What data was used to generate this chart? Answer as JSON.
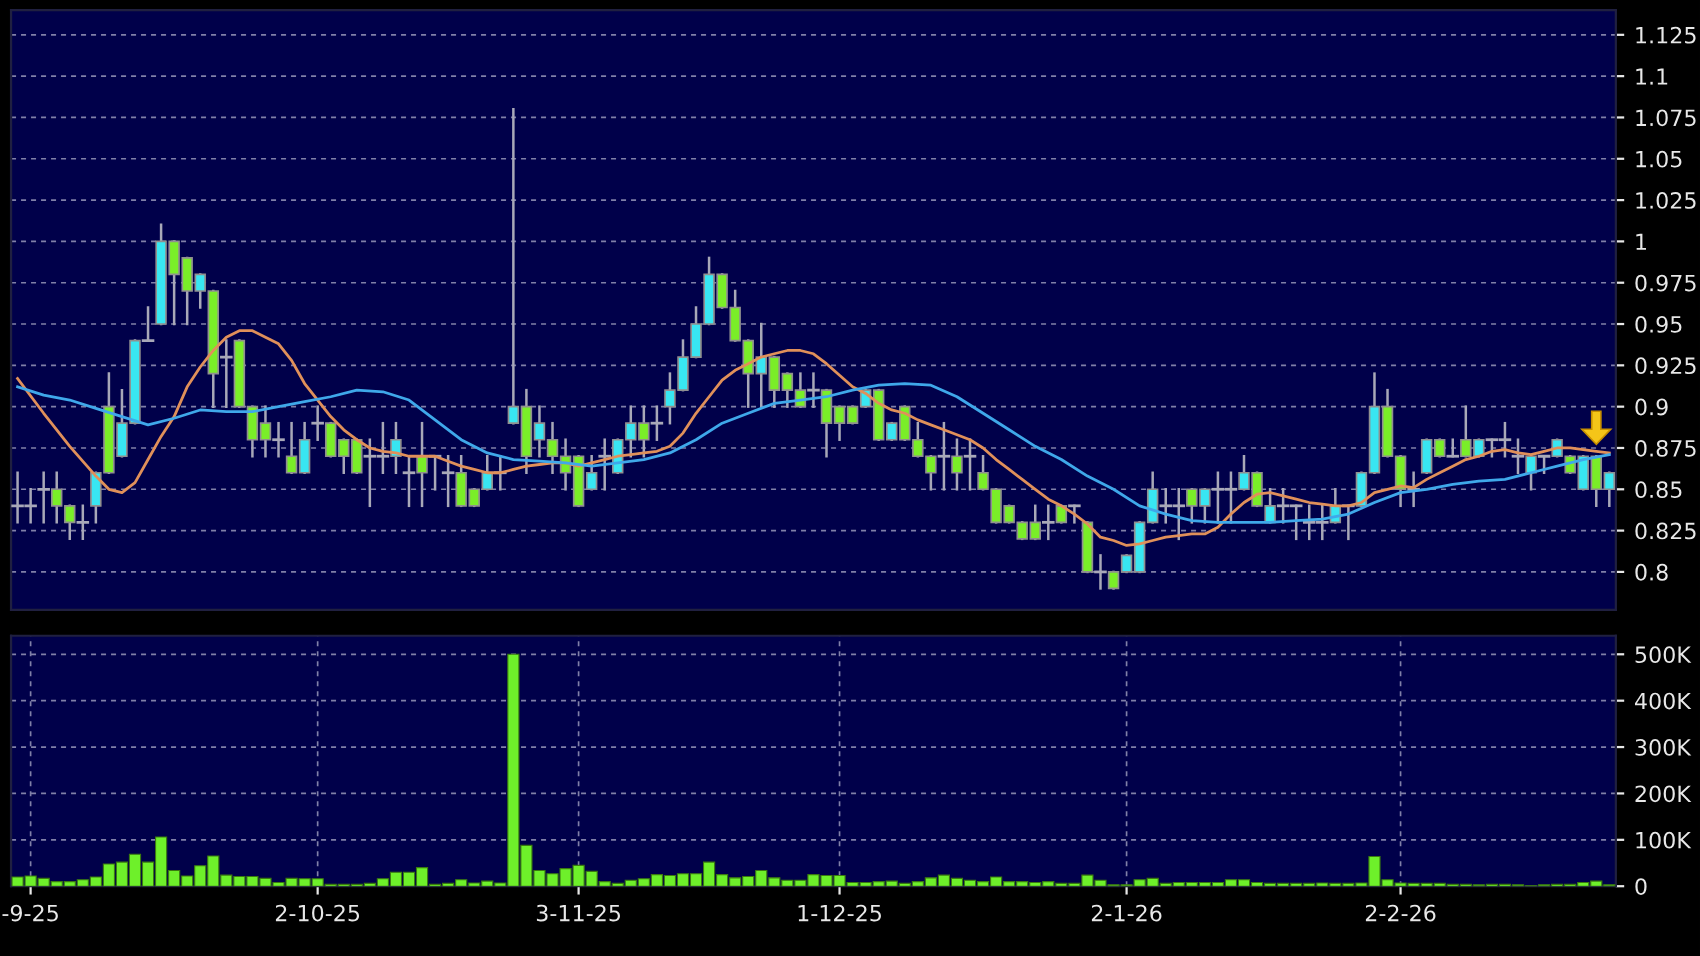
{
  "chart_data": [
    {
      "type": "candlestick",
      "categories": [
        null,
        null,
        null,
        null,
        null,
        null,
        null,
        null,
        null,
        null,
        null,
        null,
        null,
        null,
        null,
        null,
        null,
        null,
        null,
        null,
        null,
        null,
        null,
        null,
        null,
        null,
        null,
        null,
        null,
        null,
        null,
        null,
        null,
        null,
        null,
        null,
        null,
        null,
        null,
        null,
        null,
        null,
        null,
        null,
        null,
        null,
        null,
        null,
        null,
        null,
        null,
        null,
        null,
        null,
        null,
        null,
        null,
        null,
        null,
        null,
        null,
        null,
        null,
        null,
        null,
        null,
        null,
        null,
        null,
        null,
        null,
        null,
        null,
        null,
        null,
        null,
        null,
        null,
        null,
        null,
        null,
        null,
        null,
        null,
        null,
        null,
        null,
        null,
        null,
        null,
        null,
        null,
        null,
        null,
        null,
        null,
        null,
        null,
        null,
        null,
        null,
        null,
        null,
        null,
        null,
        null,
        null,
        null,
        null,
        null,
        null,
        null,
        null,
        null,
        null,
        null,
        null,
        null,
        null,
        null,
        null,
        null,
        null
      ],
      "ohlc": [
        [
          0.84,
          0.86,
          0.83,
          0.84
        ],
        [
          0.84,
          0.85,
          0.83,
          0.84
        ],
        [
          0.85,
          0.86,
          0.83,
          0.85
        ],
        [
          0.85,
          0.86,
          0.83,
          0.84
        ],
        [
          0.84,
          0.84,
          0.82,
          0.83
        ],
        [
          0.83,
          0.84,
          0.82,
          0.83
        ],
        [
          0.84,
          0.86,
          0.83,
          0.86
        ],
        [
          0.9,
          0.92,
          0.86,
          0.86
        ],
        [
          0.87,
          0.91,
          0.87,
          0.89
        ],
        [
          0.89,
          0.94,
          0.89,
          0.94
        ],
        [
          0.94,
          0.96,
          0.94,
          0.94
        ],
        [
          0.95,
          1.01,
          0.95,
          1.0
        ],
        [
          1.0,
          1.0,
          0.95,
          0.98
        ],
        [
          0.99,
          0.99,
          0.95,
          0.97
        ],
        [
          0.97,
          0.98,
          0.96,
          0.98
        ],
        [
          0.97,
          0.97,
          0.9,
          0.92
        ],
        [
          0.93,
          0.94,
          0.9,
          0.93
        ],
        [
          0.94,
          0.94,
          0.9,
          0.9
        ],
        [
          0.9,
          0.9,
          0.87,
          0.88
        ],
        [
          0.89,
          0.9,
          0.87,
          0.88
        ],
        [
          0.88,
          0.89,
          0.87,
          0.88
        ],
        [
          0.87,
          0.89,
          0.86,
          0.86
        ],
        [
          0.86,
          0.89,
          0.86,
          0.88
        ],
        [
          0.89,
          0.9,
          0.88,
          0.89
        ],
        [
          0.89,
          0.89,
          0.87,
          0.87
        ],
        [
          0.88,
          0.88,
          0.86,
          0.87
        ],
        [
          0.88,
          0.88,
          0.86,
          0.86
        ],
        [
          0.87,
          0.88,
          0.84,
          0.87
        ],
        [
          0.87,
          0.89,
          0.86,
          0.87
        ],
        [
          0.87,
          0.89,
          0.86,
          0.88
        ],
        [
          0.86,
          0.87,
          0.84,
          0.86
        ],
        [
          0.87,
          0.89,
          0.84,
          0.86
        ],
        [
          0.87,
          0.87,
          0.85,
          0.87
        ],
        [
          0.86,
          0.87,
          0.84,
          0.86
        ],
        [
          0.86,
          0.87,
          0.84,
          0.84
        ],
        [
          0.85,
          0.85,
          0.84,
          0.84
        ],
        [
          0.85,
          0.87,
          0.85,
          0.86
        ],
        [
          0.86,
          0.87,
          0.85,
          0.86
        ],
        [
          0.89,
          1.08,
          0.89,
          0.9
        ],
        [
          0.9,
          0.91,
          0.86,
          0.87
        ],
        [
          0.88,
          0.9,
          0.87,
          0.89
        ],
        [
          0.88,
          0.89,
          0.86,
          0.87
        ],
        [
          0.87,
          0.88,
          0.85,
          0.86
        ],
        [
          0.87,
          0.87,
          0.84,
          0.84
        ],
        [
          0.85,
          0.87,
          0.85,
          0.86
        ],
        [
          0.87,
          0.88,
          0.85,
          0.87
        ],
        [
          0.86,
          0.88,
          0.86,
          0.88
        ],
        [
          0.88,
          0.9,
          0.87,
          0.89
        ],
        [
          0.89,
          0.9,
          0.87,
          0.88
        ],
        [
          0.89,
          0.9,
          0.88,
          0.89
        ],
        [
          0.9,
          0.92,
          0.89,
          0.91
        ],
        [
          0.91,
          0.94,
          0.91,
          0.93
        ],
        [
          0.93,
          0.96,
          0.93,
          0.95
        ],
        [
          0.95,
          0.99,
          0.95,
          0.98
        ],
        [
          0.98,
          0.98,
          0.96,
          0.96
        ],
        [
          0.96,
          0.97,
          0.94,
          0.94
        ],
        [
          0.94,
          0.94,
          0.9,
          0.92
        ],
        [
          0.92,
          0.95,
          0.9,
          0.93
        ],
        [
          0.93,
          0.93,
          0.9,
          0.91
        ],
        [
          0.92,
          0.92,
          0.9,
          0.91
        ],
        [
          0.91,
          0.92,
          0.9,
          0.9
        ],
        [
          0.91,
          0.92,
          0.9,
          0.91
        ],
        [
          0.91,
          0.91,
          0.87,
          0.89
        ],
        [
          0.9,
          0.9,
          0.88,
          0.89
        ],
        [
          0.9,
          0.9,
          0.89,
          0.89
        ],
        [
          0.9,
          0.91,
          0.9,
          0.91
        ],
        [
          0.91,
          0.91,
          0.88,
          0.88
        ],
        [
          0.88,
          0.89,
          0.88,
          0.89
        ],
        [
          0.9,
          0.9,
          0.88,
          0.88
        ],
        [
          0.88,
          0.89,
          0.87,
          0.87
        ],
        [
          0.87,
          0.87,
          0.85,
          0.86
        ],
        [
          0.87,
          0.89,
          0.85,
          0.87
        ],
        [
          0.87,
          0.88,
          0.85,
          0.86
        ],
        [
          0.87,
          0.88,
          0.85,
          0.87
        ],
        [
          0.86,
          0.87,
          0.85,
          0.85
        ],
        [
          0.85,
          0.85,
          0.83,
          0.83
        ],
        [
          0.84,
          0.84,
          0.83,
          0.83
        ],
        [
          0.83,
          0.83,
          0.82,
          0.82
        ],
        [
          0.83,
          0.84,
          0.82,
          0.82
        ],
        [
          0.83,
          0.84,
          0.82,
          0.83
        ],
        [
          0.84,
          0.84,
          0.83,
          0.83
        ],
        [
          0.84,
          0.84,
          0.83,
          0.84
        ],
        [
          0.83,
          0.83,
          0.8,
          0.8
        ],
        [
          0.8,
          0.81,
          0.79,
          0.8
        ],
        [
          0.8,
          0.8,
          0.79,
          0.79
        ],
        [
          0.8,
          0.81,
          0.8,
          0.81
        ],
        [
          0.8,
          0.83,
          0.8,
          0.83
        ],
        [
          0.83,
          0.86,
          0.83,
          0.85
        ],
        [
          0.84,
          0.85,
          0.83,
          0.84
        ],
        [
          0.84,
          0.85,
          0.82,
          0.84
        ],
        [
          0.85,
          0.85,
          0.83,
          0.84
        ],
        [
          0.84,
          0.85,
          0.83,
          0.85
        ],
        [
          0.85,
          0.86,
          0.83,
          0.85
        ],
        [
          0.85,
          0.86,
          0.83,
          0.85
        ],
        [
          0.85,
          0.87,
          0.85,
          0.86
        ],
        [
          0.86,
          0.86,
          0.84,
          0.84
        ],
        [
          0.83,
          0.85,
          0.83,
          0.84
        ],
        [
          0.84,
          0.85,
          0.83,
          0.84
        ],
        [
          0.84,
          0.84,
          0.82,
          0.84
        ],
        [
          0.83,
          0.84,
          0.82,
          0.83
        ],
        [
          0.83,
          0.84,
          0.82,
          0.83
        ],
        [
          0.83,
          0.85,
          0.83,
          0.84
        ],
        [
          0.84,
          0.84,
          0.82,
          0.84
        ],
        [
          0.84,
          0.86,
          0.84,
          0.86
        ],
        [
          0.86,
          0.92,
          0.86,
          0.9
        ],
        [
          0.9,
          0.91,
          0.87,
          0.87
        ],
        [
          0.87,
          0.87,
          0.84,
          0.85
        ],
        [
          0.85,
          0.86,
          0.84,
          0.85
        ],
        [
          0.86,
          0.88,
          0.86,
          0.88
        ],
        [
          0.88,
          0.88,
          0.87,
          0.87
        ],
        [
          0.87,
          0.88,
          0.87,
          0.87
        ],
        [
          0.88,
          0.9,
          0.87,
          0.87
        ],
        [
          0.87,
          0.88,
          0.87,
          0.88
        ],
        [
          0.88,
          0.88,
          0.87,
          0.88
        ],
        [
          0.88,
          0.89,
          0.87,
          0.88
        ],
        [
          0.87,
          0.88,
          0.86,
          0.87
        ],
        [
          0.86,
          0.87,
          0.85,
          0.87
        ],
        [
          0.87,
          0.87,
          0.86,
          0.87
        ],
        [
          0.87,
          0.88,
          0.87,
          0.88
        ],
        [
          0.87,
          0.87,
          0.86,
          0.86
        ],
        [
          0.85,
          0.87,
          0.85,
          0.87
        ],
        [
          0.87,
          0.87,
          0.84,
          0.85
        ],
        [
          0.85,
          0.86,
          0.84,
          0.86
        ]
      ],
      "series": [
        {
          "type": "line",
          "color": "#e0905a",
          "values": [
            0.917,
            null,
            0.896,
            null,
            0.876,
            null,
            0.858,
            0.85,
            0.848,
            0.854,
            0.868,
            0.882,
            0.894,
            0.912,
            0.924,
            0.934,
            0.942,
            0.946,
            0.946,
            0.942,
            0.938,
            0.928,
            0.914,
            0.904,
            0.894,
            0.886,
            0.88,
            0.875,
            0.873,
            0.872,
            0.87,
            0.87,
            0.87,
            0.867,
            0.864,
            0.862,
            0.86,
            0.86,
            0.862,
            0.864,
            0.865,
            0.866,
            0.866,
            0.864,
            0.866,
            0.868,
            0.87,
            0.871,
            0.872,
            0.873,
            0.876,
            0.884,
            0.896,
            0.906,
            0.916,
            0.922,
            0.926,
            0.93,
            0.932,
            0.934,
            0.934,
            0.932,
            0.926,
            0.919,
            0.912,
            0.908,
            0.902,
            0.898,
            0.896,
            0.892,
            0.889,
            0.886,
            0.883,
            0.88,
            0.875,
            0.868,
            0.862,
            0.856,
            0.85,
            0.844,
            0.84,
            0.835,
            0.829,
            0.821,
            0.819,
            0.816,
            0.817,
            0.819,
            0.821,
            0.822,
            0.823,
            0.823,
            0.827,
            0.835,
            0.842,
            0.847,
            0.848,
            0.846,
            0.844,
            0.842,
            0.841,
            0.84,
            0.84,
            0.842,
            0.848,
            0.85,
            0.852,
            0.851,
            0.856,
            0.86,
            0.864,
            0.868,
            0.87,
            0.873,
            0.874,
            0.872,
            0.871,
            0.873,
            0.875,
            0.875,
            0.874,
            0.873,
            0.872
          ]
        },
        {
          "type": "line",
          "color": "#3fa8ea",
          "values": [
            0.912,
            null,
            0.907,
            null,
            0.904,
            null,
            0.899,
            null,
            0.894,
            null,
            0.889,
            null,
            0.893,
            null,
            0.898,
            null,
            0.897,
            null,
            0.897,
            null,
            0.9,
            null,
            0.903,
            null,
            0.906,
            null,
            0.91,
            null,
            0.909,
            null,
            0.904,
            null,
            0.892,
            null,
            0.88,
            null,
            0.872,
            null,
            0.868,
            null,
            0.867,
            null,
            0.866,
            null,
            0.864,
            null,
            0.866,
            null,
            0.868,
            null,
            0.872,
            null,
            0.88,
            null,
            0.89,
            null,
            0.896,
            null,
            0.902,
            null,
            0.904,
            null,
            0.906,
            null,
            0.91,
            null,
            0.913,
            null,
            0.914,
            null,
            0.913,
            null,
            0.906,
            null,
            0.896,
            null,
            0.886,
            null,
            0.876,
            null,
            0.868,
            null,
            0.858,
            null,
            0.85,
            null,
            0.84,
            null,
            0.835,
            null,
            0.831,
            null,
            0.83,
            null,
            0.83,
            null,
            0.83,
            null,
            0.831,
            null,
            0.832,
            null,
            0.835,
            null,
            0.842,
            null,
            0.848,
            null,
            0.85,
            null,
            0.853,
            null,
            0.855,
            null,
            0.856,
            null,
            0.86,
            null,
            0.864,
            null,
            0.868,
            null,
            0.871
          ]
        }
      ],
      "ylim": [
        0.777,
        1.14
      ],
      "yticks": [
        0.8,
        0.825,
        0.85,
        0.875,
        0.9,
        0.925,
        0.95,
        0.975,
        1,
        1.025,
        1.05,
        1.075,
        1.1,
        1.125
      ],
      "tick_labels": "y",
      "grid": true
    },
    {
      "type": "bar",
      "color": "#6ef02a",
      "categories": [
        null,
        "-9-25",
        null,
        null,
        null,
        null,
        null,
        null,
        null,
        null,
        null,
        null,
        null,
        null,
        null,
        null,
        null,
        null,
        null,
        null,
        null,
        null,
        null,
        "2-10-25",
        null,
        null,
        null,
        null,
        null,
        null,
        null,
        null,
        null,
        null,
        null,
        null,
        null,
        null,
        null,
        null,
        null,
        null,
        null,
        "3-11-25",
        null,
        null,
        null,
        null,
        null,
        null,
        null,
        null,
        null,
        null,
        null,
        null,
        null,
        null,
        null,
        null,
        null,
        null,
        null,
        "1-12-25",
        null,
        null,
        null,
        null,
        null,
        null,
        null,
        null,
        null,
        null,
        null,
        null,
        null,
        null,
        null,
        null,
        null,
        null,
        null,
        null,
        null,
        "2-1-26",
        null,
        null,
        null,
        null,
        null,
        null,
        null,
        null,
        null,
        null,
        null,
        null,
        null,
        null,
        null,
        null,
        null,
        null,
        null,
        null,
        "2-2-26",
        null,
        null,
        null,
        null,
        null,
        null,
        null,
        null,
        null,
        null,
        null,
        null,
        null,
        null,
        null,
        null
      ],
      "values": [
        20000,
        22000,
        17000,
        10000,
        10000,
        14000,
        20000,
        48000,
        52000,
        69000,
        52000,
        106000,
        34000,
        22000,
        44000,
        65000,
        24000,
        21000,
        21000,
        17000,
        8000,
        17000,
        16000,
        16000,
        4000,
        4000,
        4000,
        6000,
        16000,
        30000,
        30000,
        40000,
        4000,
        6000,
        14000,
        7000,
        11000,
        7000,
        500000,
        88000,
        34000,
        27000,
        38000,
        45000,
        32000,
        10000,
        6000,
        13000,
        16000,
        25000,
        23000,
        27000,
        27000,
        52000,
        25000,
        18000,
        21000,
        34000,
        18000,
        13000,
        13000,
        25000,
        23000,
        23000,
        8000,
        8000,
        10000,
        11000,
        6000,
        10000,
        18000,
        24000,
        17000,
        13000,
        10000,
        20000,
        10000,
        10000,
        8000,
        10000,
        6000,
        6000,
        24000,
        13000,
        3000,
        3000,
        14000,
        17000,
        6000,
        8000,
        8000,
        8000,
        8000,
        14000,
        14000,
        8000,
        6000,
        6000,
        6000,
        6000,
        7000,
        6000,
        6000,
        7000,
        64000,
        14000,
        7000,
        6000,
        6000,
        6000,
        4000,
        4000,
        3000,
        4000,
        4000,
        3000,
        1000,
        3000,
        4000,
        4000,
        8000,
        11000,
        3000
      ],
      "ylim": [
        0,
        540000
      ],
      "yticks": [
        0,
        {
          "value": 100000,
          "label": "100K"
        },
        {
          "value": 200000,
          "label": "200K"
        },
        {
          "value": 300000,
          "label": "300K"
        },
        {
          "value": 400000,
          "label": "400K"
        },
        {
          "value": 500000,
          "label": "500K"
        }
      ],
      "grid": true
    }
  ]
}
